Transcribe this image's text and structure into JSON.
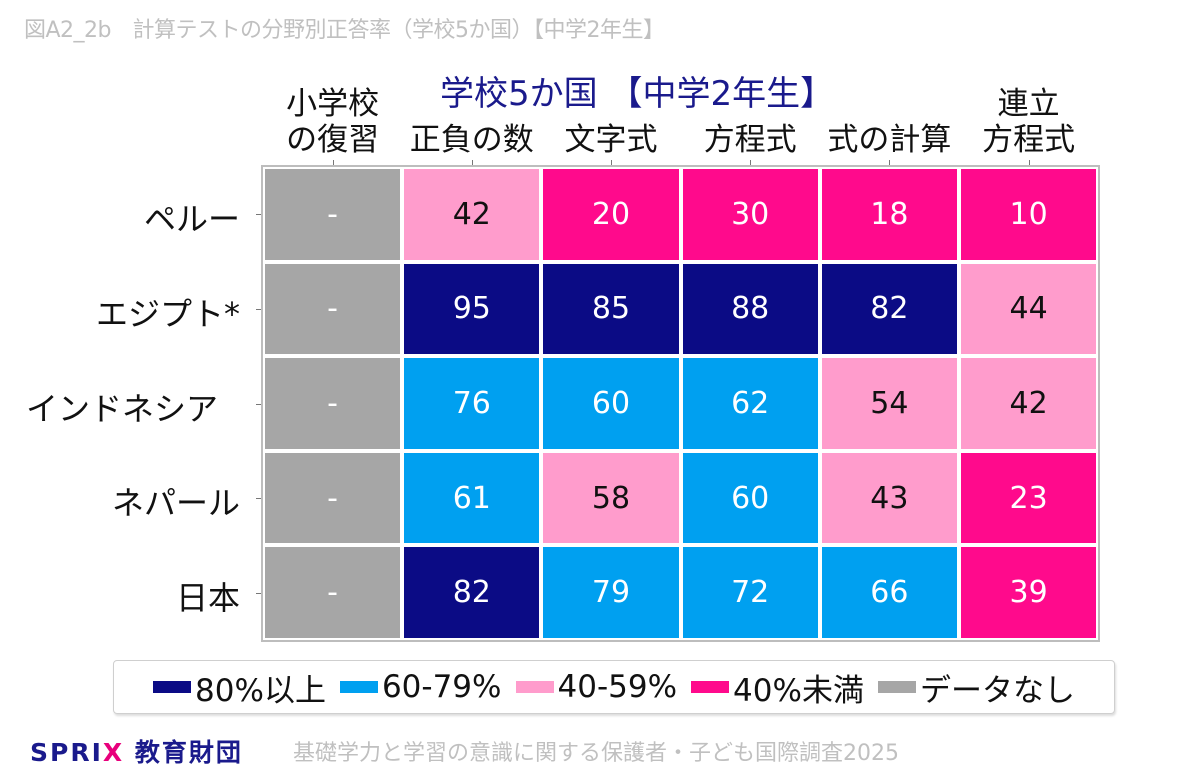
{
  "figure_title": "図A2_2b　計算テストの分野別正答率（学校5か国）【中学2年生】",
  "chart_data": {
    "type": "heatmap",
    "title": "学校5か国 【中学2年生】",
    "columns": [
      "小学校\nの復習",
      "正負の数",
      "文字式",
      "方程式",
      "式の計算",
      "連立\n方程式"
    ],
    "rows": [
      "ペルー",
      "エジプト*",
      "インドネシア",
      "ネパール",
      "日本"
    ],
    "values": [
      [
        "-",
        42,
        20,
        30,
        18,
        10
      ],
      [
        "-",
        95,
        85,
        88,
        82,
        44
      ],
      [
        "-",
        76,
        60,
        62,
        54,
        42
      ],
      [
        "-",
        61,
        58,
        60,
        43,
        23
      ],
      [
        "-",
        82,
        79,
        72,
        66,
        39
      ]
    ],
    "legend": [
      {
        "label": "80%以上",
        "color": "#0b0b85"
      },
      {
        "label": "60-79%",
        "color": "#00a0f0"
      },
      {
        "label": "40-59%",
        "color": "#ff9ccc"
      },
      {
        "label": "40%未満",
        "color": "#ff0a8c"
      },
      {
        "label": "データなし",
        "color": "#a6a6a6"
      }
    ],
    "legend_position": "bottom"
  },
  "footer": {
    "logo": "SPRIX教育財団",
    "source": "基礎学力と学習の意識に関する保護者・子ども国際調査2025"
  }
}
